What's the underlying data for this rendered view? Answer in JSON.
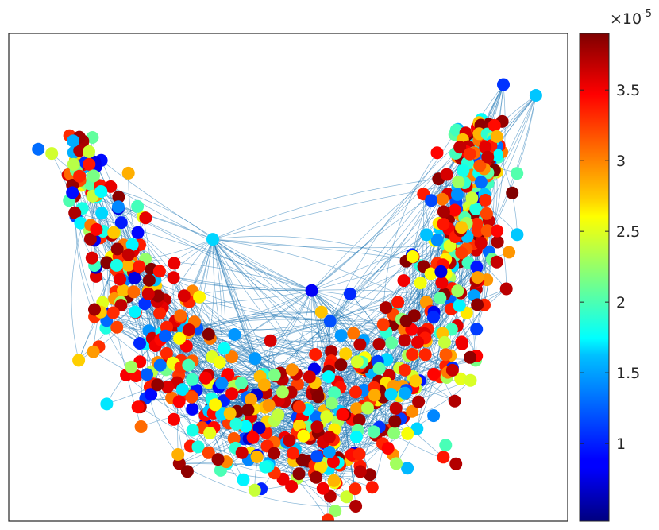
{
  "chart_data": {
    "type": "scatter",
    "title": "",
    "xlabel": "",
    "ylabel": "",
    "axes_ticks_visible": false,
    "grid": false,
    "nodes_description_note": "",
    "colorbar": {
      "colormap": "jet",
      "scale_label": "×10",
      "scale_exponent": "-5",
      "min": 0.45,
      "max": 3.9,
      "ticks": [
        1,
        1.5,
        2,
        2.5,
        3,
        3.5
      ],
      "tick_labels": [
        "1",
        "1.5",
        "2",
        "2.5",
        "3",
        "3.5"
      ]
    },
    "edge_color": "#1f77b4",
    "xlim": [
      0,
      100
    ],
    "ylim": [
      0,
      100
    ],
    "highlighted_nodes": [
      {
        "x": 88.5,
        "y": 89.5,
        "value": 1.05
      },
      {
        "x": 94.3,
        "y": 87.3,
        "value": 1.55
      },
      {
        "x": 36.5,
        "y": 57.8,
        "value": 1.6
      },
      {
        "x": 54.2,
        "y": 47.3,
        "value": 0.85
      },
      {
        "x": 28.0,
        "y": 38.0,
        "value": 1.2
      },
      {
        "x": 57.5,
        "y": 41.0,
        "value": 1.15
      },
      {
        "x": 84.5,
        "y": 69.5,
        "value": 1.25
      },
      {
        "x": 55.0,
        "y": 9.0,
        "value": 3.8
      }
    ]
  }
}
